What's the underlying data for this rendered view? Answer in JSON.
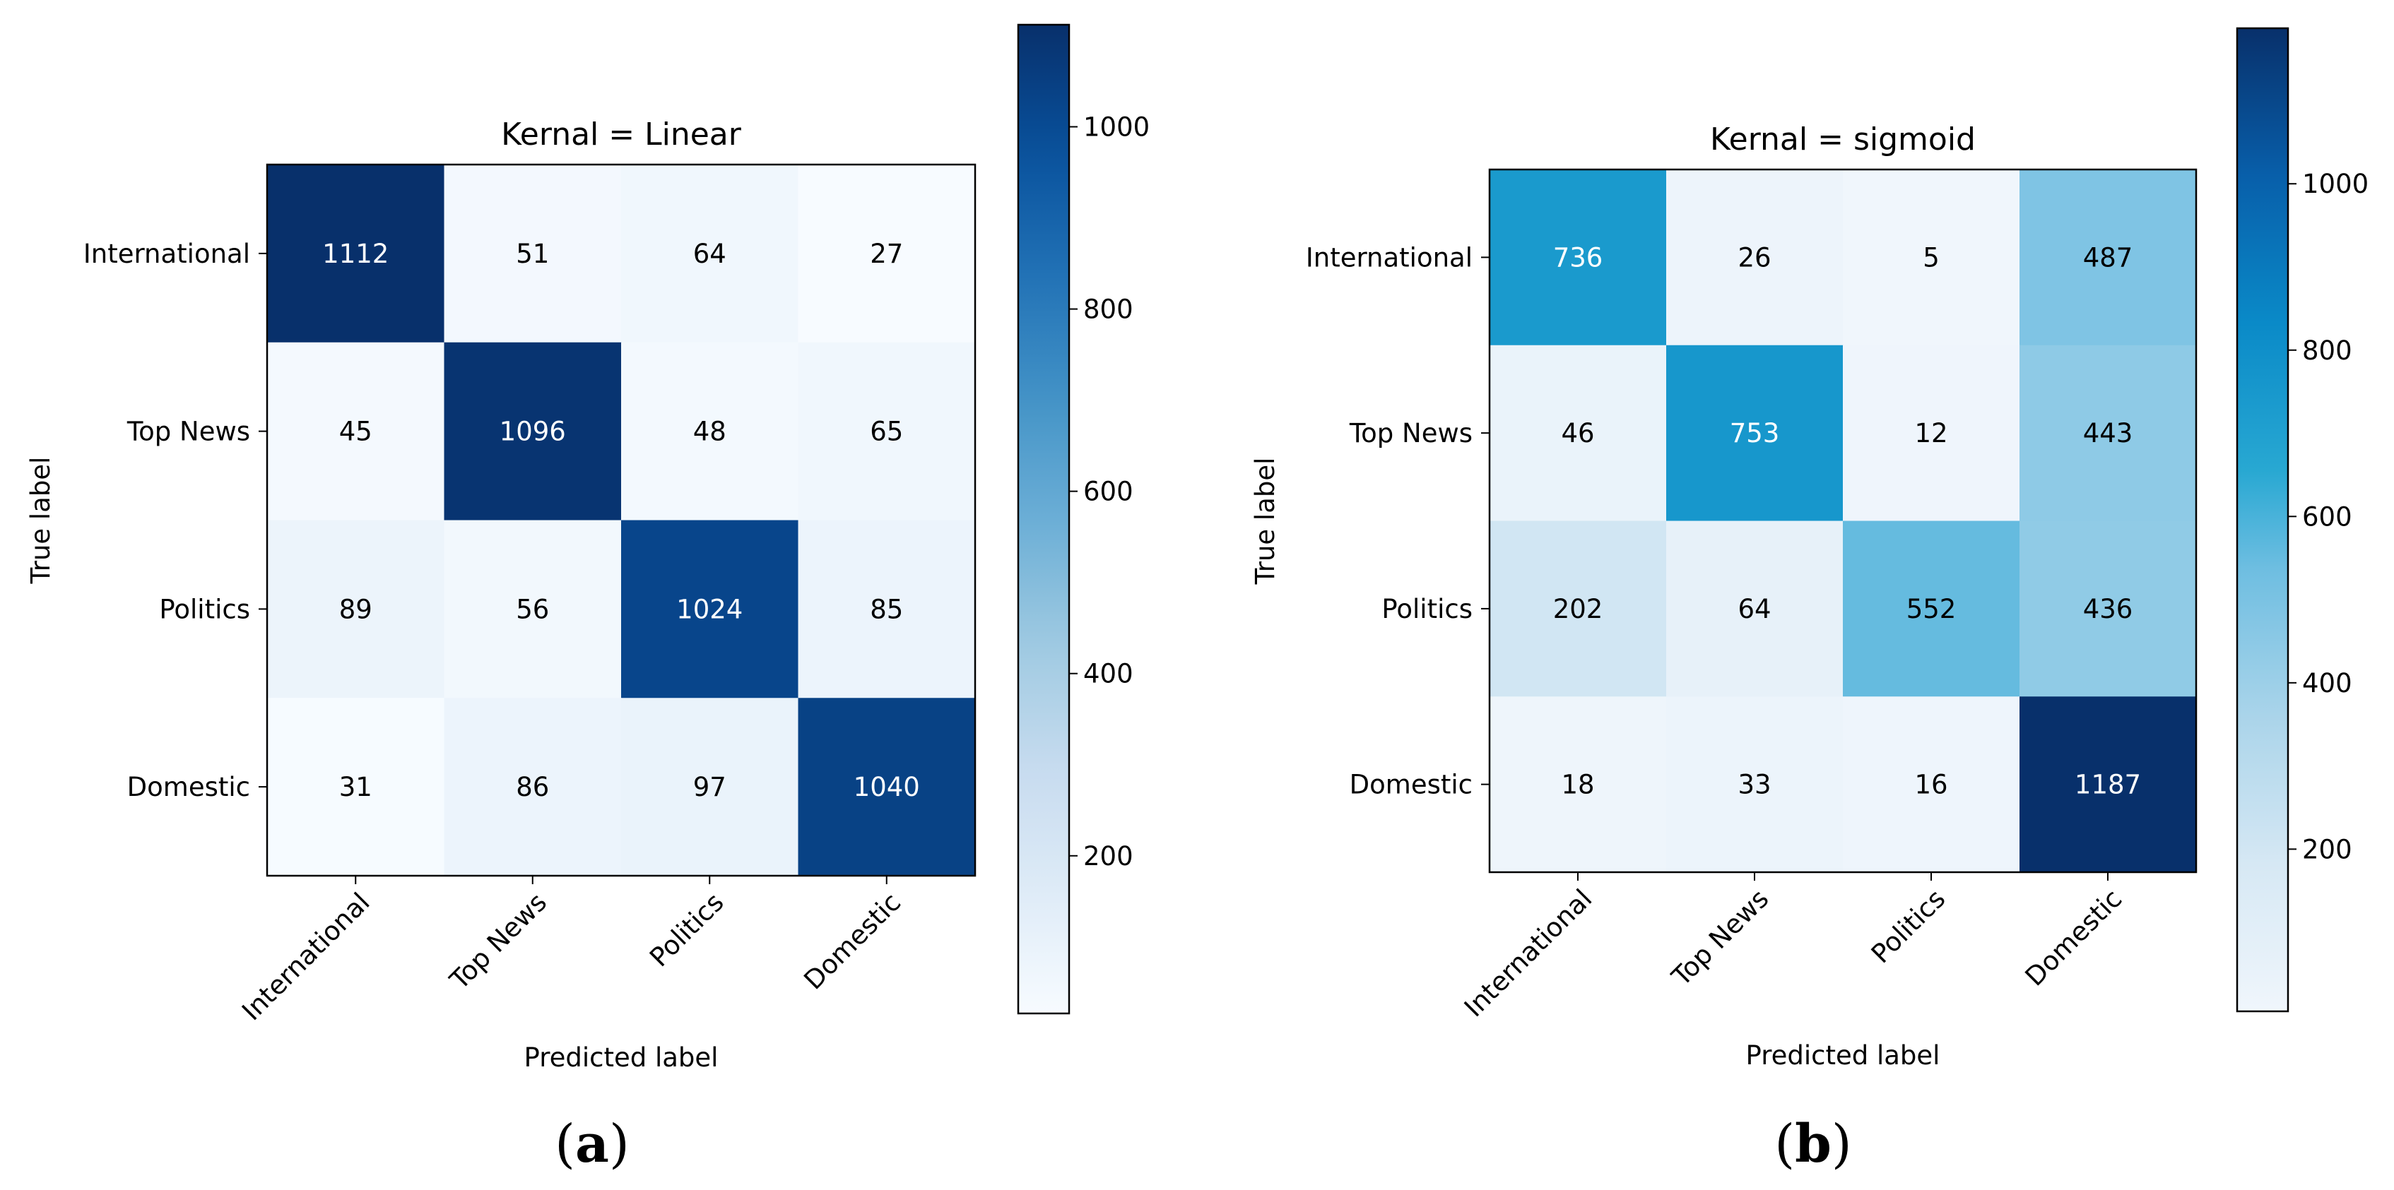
{
  "chart_data": [
    {
      "type": "heatmap",
      "title": "Kernal = Linear",
      "xlabel": "Predicted label",
      "ylabel": "True label",
      "x_categories": [
        "International",
        "Top News",
        "Politics",
        "Domestic"
      ],
      "y_categories": [
        "International",
        "Top News",
        "Politics",
        "Domestic"
      ],
      "matrix": [
        [
          1112,
          51,
          64,
          27
        ],
        [
          45,
          1096,
          48,
          65
        ],
        [
          89,
          56,
          1024,
          85
        ],
        [
          31,
          86,
          97,
          1040
        ]
      ],
      "colormap": "Blues",
      "color_range": [
        27,
        1112
      ],
      "colorbar_ticks": [
        200,
        400,
        600,
        800,
        1000
      ],
      "caption": {
        "open": "(",
        "letter": "a",
        "close": ")"
      }
    },
    {
      "type": "heatmap",
      "title": "Kernal = sigmoid",
      "xlabel": "Predicted label",
      "ylabel": "True label",
      "x_categories": [
        "International",
        "Top News",
        "Politics",
        "Domestic"
      ],
      "y_categories": [
        "International",
        "Top News",
        "Politics",
        "Domestic"
      ],
      "matrix": [
        [
          736,
          26,
          5,
          487
        ],
        [
          46,
          753,
          12,
          443
        ],
        [
          202,
          64,
          552,
          436
        ],
        [
          18,
          33,
          16,
          1187
        ]
      ],
      "colormap": "Blues",
      "color_range": [
        5,
        1187
      ],
      "colorbar_ticks": [
        200,
        400,
        600,
        800,
        1000
      ],
      "caption": {
        "open": "(",
        "letter": "b",
        "close": ")"
      }
    }
  ]
}
